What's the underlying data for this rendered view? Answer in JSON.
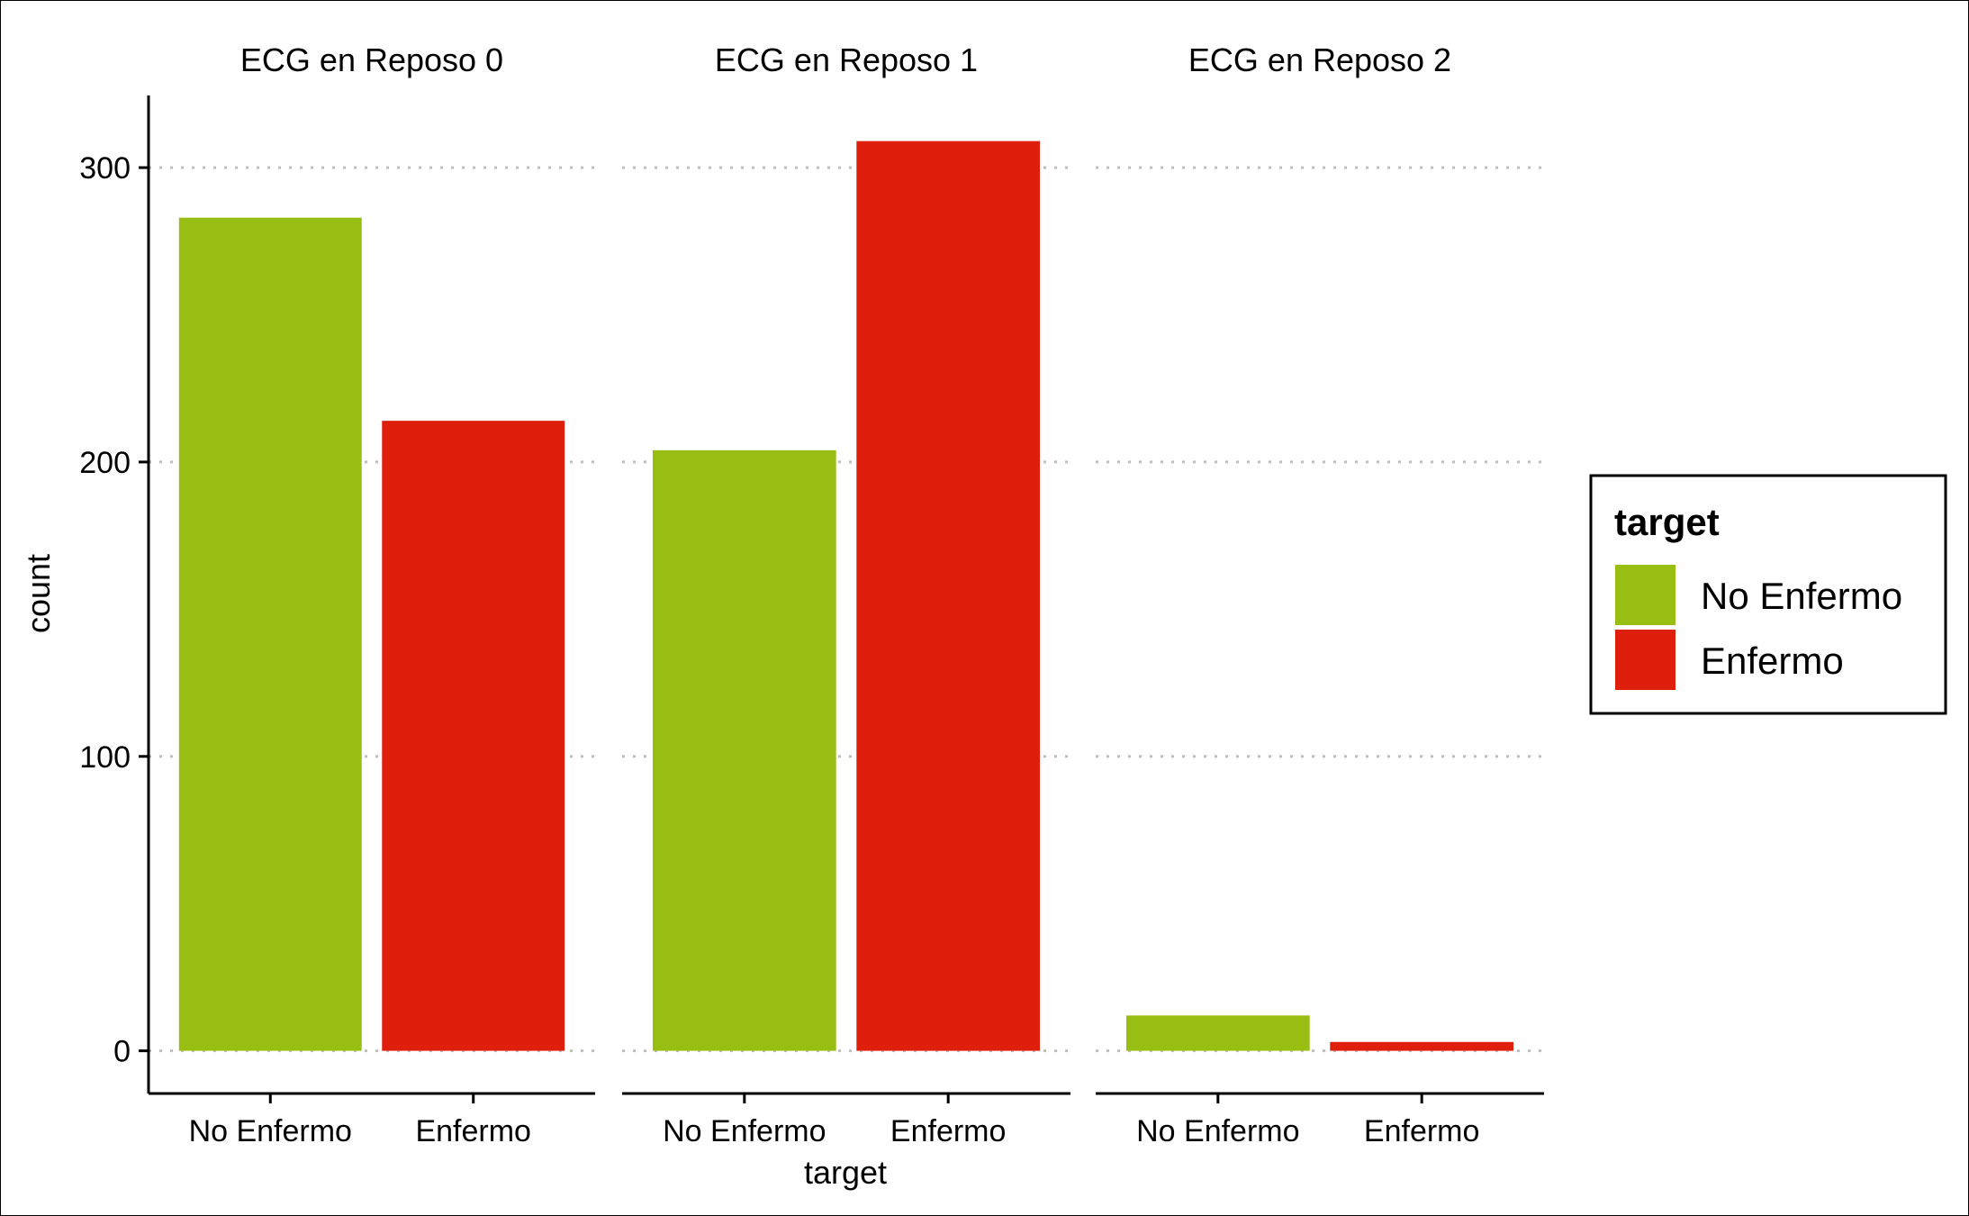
{
  "chart_data": {
    "type": "bar",
    "facet_variable": "ECG en Reposo",
    "panels": [
      {
        "title": "ECG en Reposo 0",
        "categories": [
          "No Enfermo",
          "Enfermo"
        ],
        "values": [
          283,
          214
        ]
      },
      {
        "title": "ECG en Reposo 1",
        "categories": [
          "No Enfermo",
          "Enfermo"
        ],
        "values": [
          204,
          309
        ]
      },
      {
        "title": "ECG en Reposo 2",
        "categories": [
          "No Enfermo",
          "Enfermo"
        ],
        "values": [
          12,
          3
        ]
      }
    ],
    "xlabel": "target",
    "ylabel": "count",
    "ylim": [
      -14.5,
      324.5
    ],
    "yticks": [
      0,
      100,
      200,
      300
    ],
    "grid": {
      "major_y": true,
      "style": "dotted"
    },
    "legend": {
      "title": "target",
      "position": "right",
      "entries": [
        {
          "label": "No Enfermo",
          "color": "#99BE13"
        },
        {
          "label": "Enfermo",
          "color": "#DE1F0B"
        }
      ]
    },
    "colors": {
      "No Enfermo": "#99BE13",
      "Enfermo": "#DE1F0B",
      "grid": "#BEBEBE"
    }
  }
}
